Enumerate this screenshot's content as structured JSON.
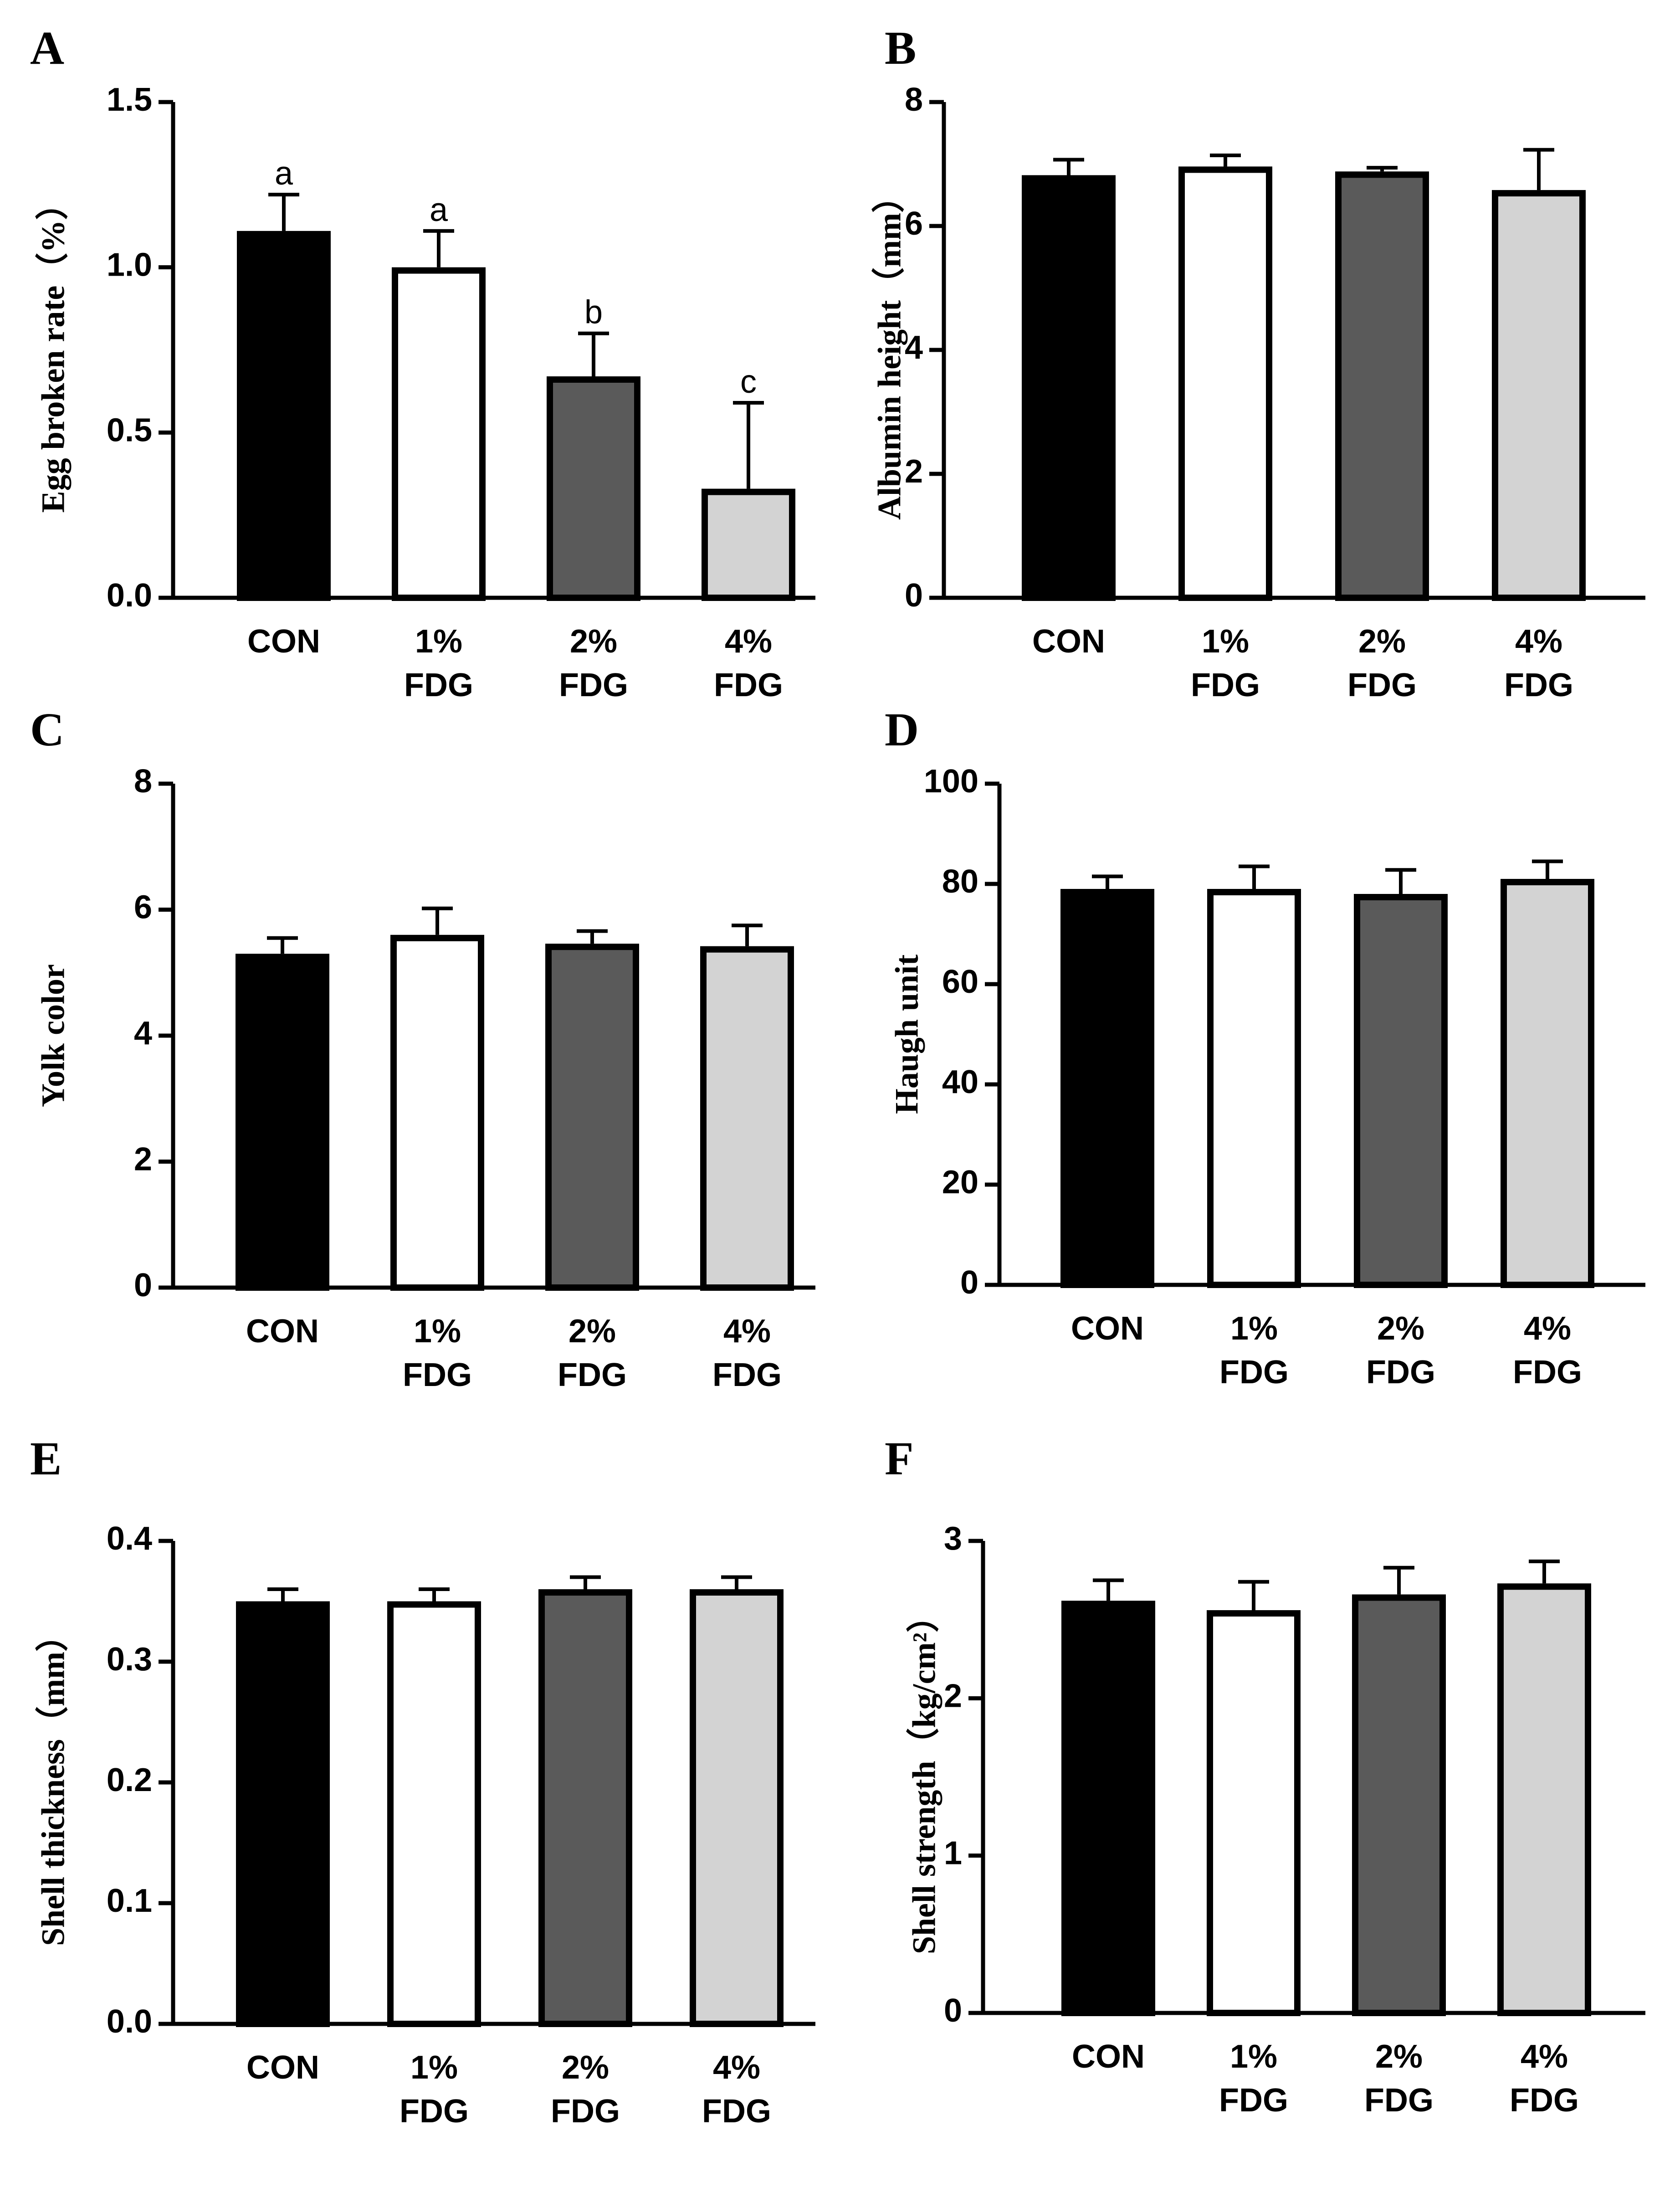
{
  "figure": {
    "categories": [
      [
        "CON"
      ],
      [
        "1%",
        "FDG"
      ],
      [
        "2%",
        "FDG"
      ],
      [
        "4%",
        "FDG"
      ]
    ],
    "bar_colors": [
      "#000000",
      "#ffffff",
      "#5a5a5a",
      "#d3d3d3"
    ],
    "outline_color": "#000000"
  },
  "chart_data": [
    {
      "panel": "A",
      "type": "bar",
      "title": "",
      "xlabel": "",
      "ylabel": "Egg broken rate（%）",
      "categories": [
        "CON",
        "1% FDG",
        "2% FDG",
        "4% FDG"
      ],
      "values": [
        1.11,
        1.0,
        0.67,
        0.33
      ],
      "errors": [
        0.11,
        0.11,
        0.13,
        0.26
      ],
      "significance": [
        "a",
        "a",
        "b",
        "c"
      ],
      "ylim": [
        0,
        1.5
      ],
      "yticks": [
        0.0,
        0.5,
        1.0,
        1.5
      ],
      "yticklabels": [
        "0.0",
        "0.5",
        "1.0",
        "1.5"
      ]
    },
    {
      "panel": "B",
      "type": "bar",
      "title": "",
      "xlabel": "",
      "ylabel": "Albumin height（mm）",
      "categories": [
        "CON",
        "1% FDG",
        "2% FDG",
        "4% FDG"
      ],
      "values": [
        6.82,
        6.96,
        6.88,
        6.58
      ],
      "errors": [
        0.25,
        0.18,
        0.06,
        0.65
      ],
      "significance": [],
      "ylim": [
        0,
        8
      ],
      "yticks": [
        0,
        2,
        4,
        6,
        8
      ],
      "yticklabels": [
        "0",
        "2",
        "4",
        "6",
        "8"
      ]
    },
    {
      "panel": "C",
      "type": "bar",
      "title": "",
      "xlabel": "",
      "ylabel": "Yolk color",
      "categories": [
        "CON",
        "1% FDG",
        "2% FDG",
        "4% FDG"
      ],
      "values": [
        5.3,
        5.6,
        5.46,
        5.42
      ],
      "errors": [
        0.25,
        0.42,
        0.2,
        0.33
      ],
      "significance": [],
      "ylim": [
        0,
        8
      ],
      "yticks": [
        0,
        2,
        4,
        6,
        8
      ],
      "yticklabels": [
        "0",
        "2",
        "4",
        "6",
        "8"
      ]
    },
    {
      "panel": "D",
      "type": "bar",
      "title": "",
      "xlabel": "",
      "ylabel": "Haugh unit",
      "categories": [
        "CON",
        "1% FDG",
        "2% FDG",
        "4% FDG"
      ],
      "values": [
        79,
        79,
        78,
        81
      ],
      "errors": [
        2.5,
        4.5,
        4.8,
        3.5
      ],
      "significance": [],
      "ylim": [
        0,
        100
      ],
      "yticks": [
        0,
        20,
        40,
        60,
        80,
        100
      ],
      "yticklabels": [
        "0",
        "20",
        "40",
        "60",
        "80",
        "100"
      ]
    },
    {
      "panel": "E",
      "type": "bar",
      "title": "",
      "xlabel": "",
      "ylabel": "Shell thickness（mm）",
      "categories": [
        "CON",
        "1% FDG",
        "2% FDG",
        "4% FDG"
      ],
      "values": [
        0.35,
        0.35,
        0.36,
        0.36
      ],
      "errors": [
        0.01,
        0.01,
        0.01,
        0.01
      ],
      "significance": [],
      "ylim": [
        0,
        0.4
      ],
      "yticks": [
        0.0,
        0.1,
        0.2,
        0.3,
        0.4
      ],
      "yticklabels": [
        "0.0",
        "0.1",
        "0.2",
        "0.3",
        "0.4"
      ]
    },
    {
      "panel": "F",
      "type": "bar",
      "title": "",
      "xlabel": "",
      "ylabel": "Shell strength（kg/cm²）",
      "categories": [
        "CON",
        "1% FDG",
        "2% FDG",
        "4% FDG"
      ],
      "values": [
        2.62,
        2.56,
        2.66,
        2.73
      ],
      "errors": [
        0.13,
        0.18,
        0.17,
        0.14
      ],
      "significance": [],
      "ylim": [
        0,
        3
      ],
      "yticks": [
        0,
        1,
        2,
        3
      ],
      "yticklabels": [
        "0",
        "1",
        "2",
        "3"
      ]
    }
  ]
}
